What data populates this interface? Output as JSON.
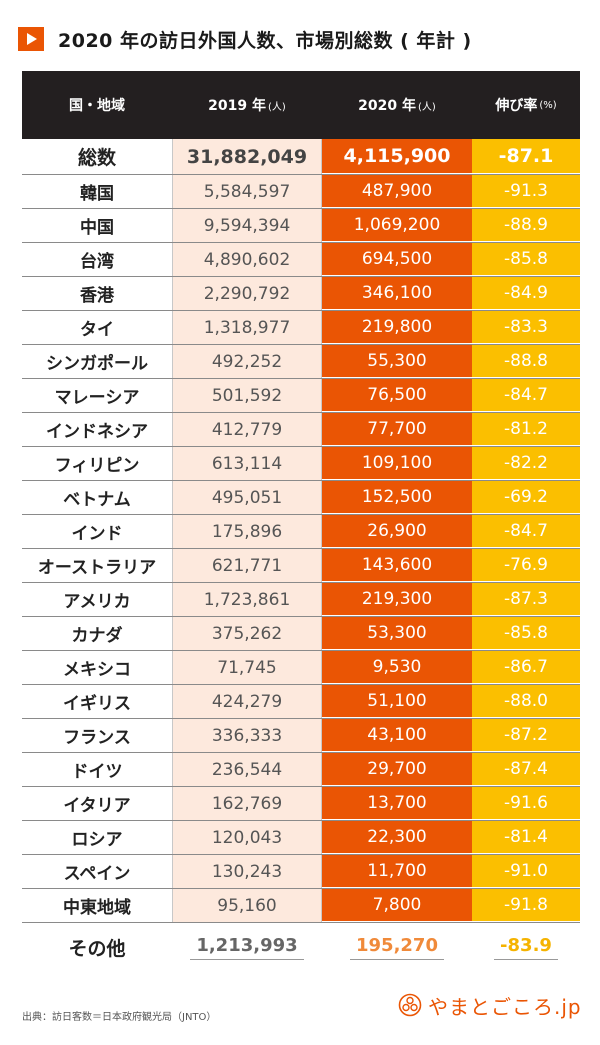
{
  "title": "2020 年の訪日外国人数、市場別総数 ( 年計 )",
  "header": {
    "col1": "国・地域",
    "col2": "2019 年",
    "col2_unit": "(人)",
    "col3": "2020 年",
    "col3_unit": "(人)",
    "col4": "伸び率",
    "col4_unit": "(%)"
  },
  "chart_data": {
    "type": "table",
    "title": "2020 年の訪日外国人数、市場別総数 ( 年計 )",
    "columns": [
      "国・地域",
      "2019 年(人)",
      "2020 年(人)",
      "伸び率(%)"
    ],
    "rows": [
      {
        "region": "総数",
        "y2019": "31,882,049",
        "y2020": "4,115,900",
        "growth": "-87.1"
      },
      {
        "region": "韓国",
        "y2019": "5,584,597",
        "y2020": "487,900",
        "growth": "-91.3"
      },
      {
        "region": "中国",
        "y2019": "9,594,394",
        "y2020": "1,069,200",
        "growth": "-88.9"
      },
      {
        "region": "台湾",
        "y2019": "4,890,602",
        "y2020": "694,500",
        "growth": "-85.8"
      },
      {
        "region": "香港",
        "y2019": "2,290,792",
        "y2020": "346,100",
        "growth": "-84.9"
      },
      {
        "region": "タイ",
        "y2019": "1,318,977",
        "y2020": "219,800",
        "growth": "-83.3"
      },
      {
        "region": "シンガポール",
        "y2019": "492,252",
        "y2020": "55,300",
        "growth": "-88.8"
      },
      {
        "region": "マレーシア",
        "y2019": "501,592",
        "y2020": "76,500",
        "growth": "-84.7"
      },
      {
        "region": "インドネシア",
        "y2019": "412,779",
        "y2020": "77,700",
        "growth": "-81.2"
      },
      {
        "region": "フィリピン",
        "y2019": "613,114",
        "y2020": "109,100",
        "growth": "-82.2"
      },
      {
        "region": "ベトナム",
        "y2019": "495,051",
        "y2020": "152,500",
        "growth": "-69.2"
      },
      {
        "region": "インド",
        "y2019": "175,896",
        "y2020": "26,900",
        "growth": "-84.7"
      },
      {
        "region": "オーストラリア",
        "y2019": "621,771",
        "y2020": "143,600",
        "growth": "-76.9"
      },
      {
        "region": "アメリカ",
        "y2019": "1,723,861",
        "y2020": "219,300",
        "growth": "-87.3"
      },
      {
        "region": "カナダ",
        "y2019": "375,262",
        "y2020": "53,300",
        "growth": "-85.8"
      },
      {
        "region": "メキシコ",
        "y2019": "71,745",
        "y2020": "9,530",
        "growth": "-86.7"
      },
      {
        "region": "イギリス",
        "y2019": "424,279",
        "y2020": "51,100",
        "growth": "-88.0"
      },
      {
        "region": "フランス",
        "y2019": "336,333",
        "y2020": "43,100",
        "growth": "-87.2"
      },
      {
        "region": "ドイツ",
        "y2019": "236,544",
        "y2020": "29,700",
        "growth": "-87.4"
      },
      {
        "region": "イタリア",
        "y2019": "162,769",
        "y2020": "13,700",
        "growth": "-91.6"
      },
      {
        "region": "ロシア",
        "y2019": "120,043",
        "y2020": "22,300",
        "growth": "-81.4"
      },
      {
        "region": "スペイン",
        "y2019": "130,243",
        "y2020": "11,700",
        "growth": "-91.0"
      },
      {
        "region": "中東地域",
        "y2019": "95,160",
        "y2020": "7,800",
        "growth": "-91.8"
      }
    ],
    "other": {
      "region": "その他",
      "y2019": "1,213,993",
      "y2020": "195,270",
      "growth": "-83.9"
    }
  },
  "colors": {
    "header_bg": "#231f20",
    "col2019_bg": "#fde9dd",
    "col2020_bg": "#ea5504",
    "growth_bg": "#fbbf00",
    "accent": "#ea5504"
  },
  "footer": {
    "source": "出典：訪日客数＝日本政府観光局（JNTO）",
    "logo_text": "やまとごころ.jp",
    "logo_icon": "yamatogokoro-logo-icon"
  }
}
